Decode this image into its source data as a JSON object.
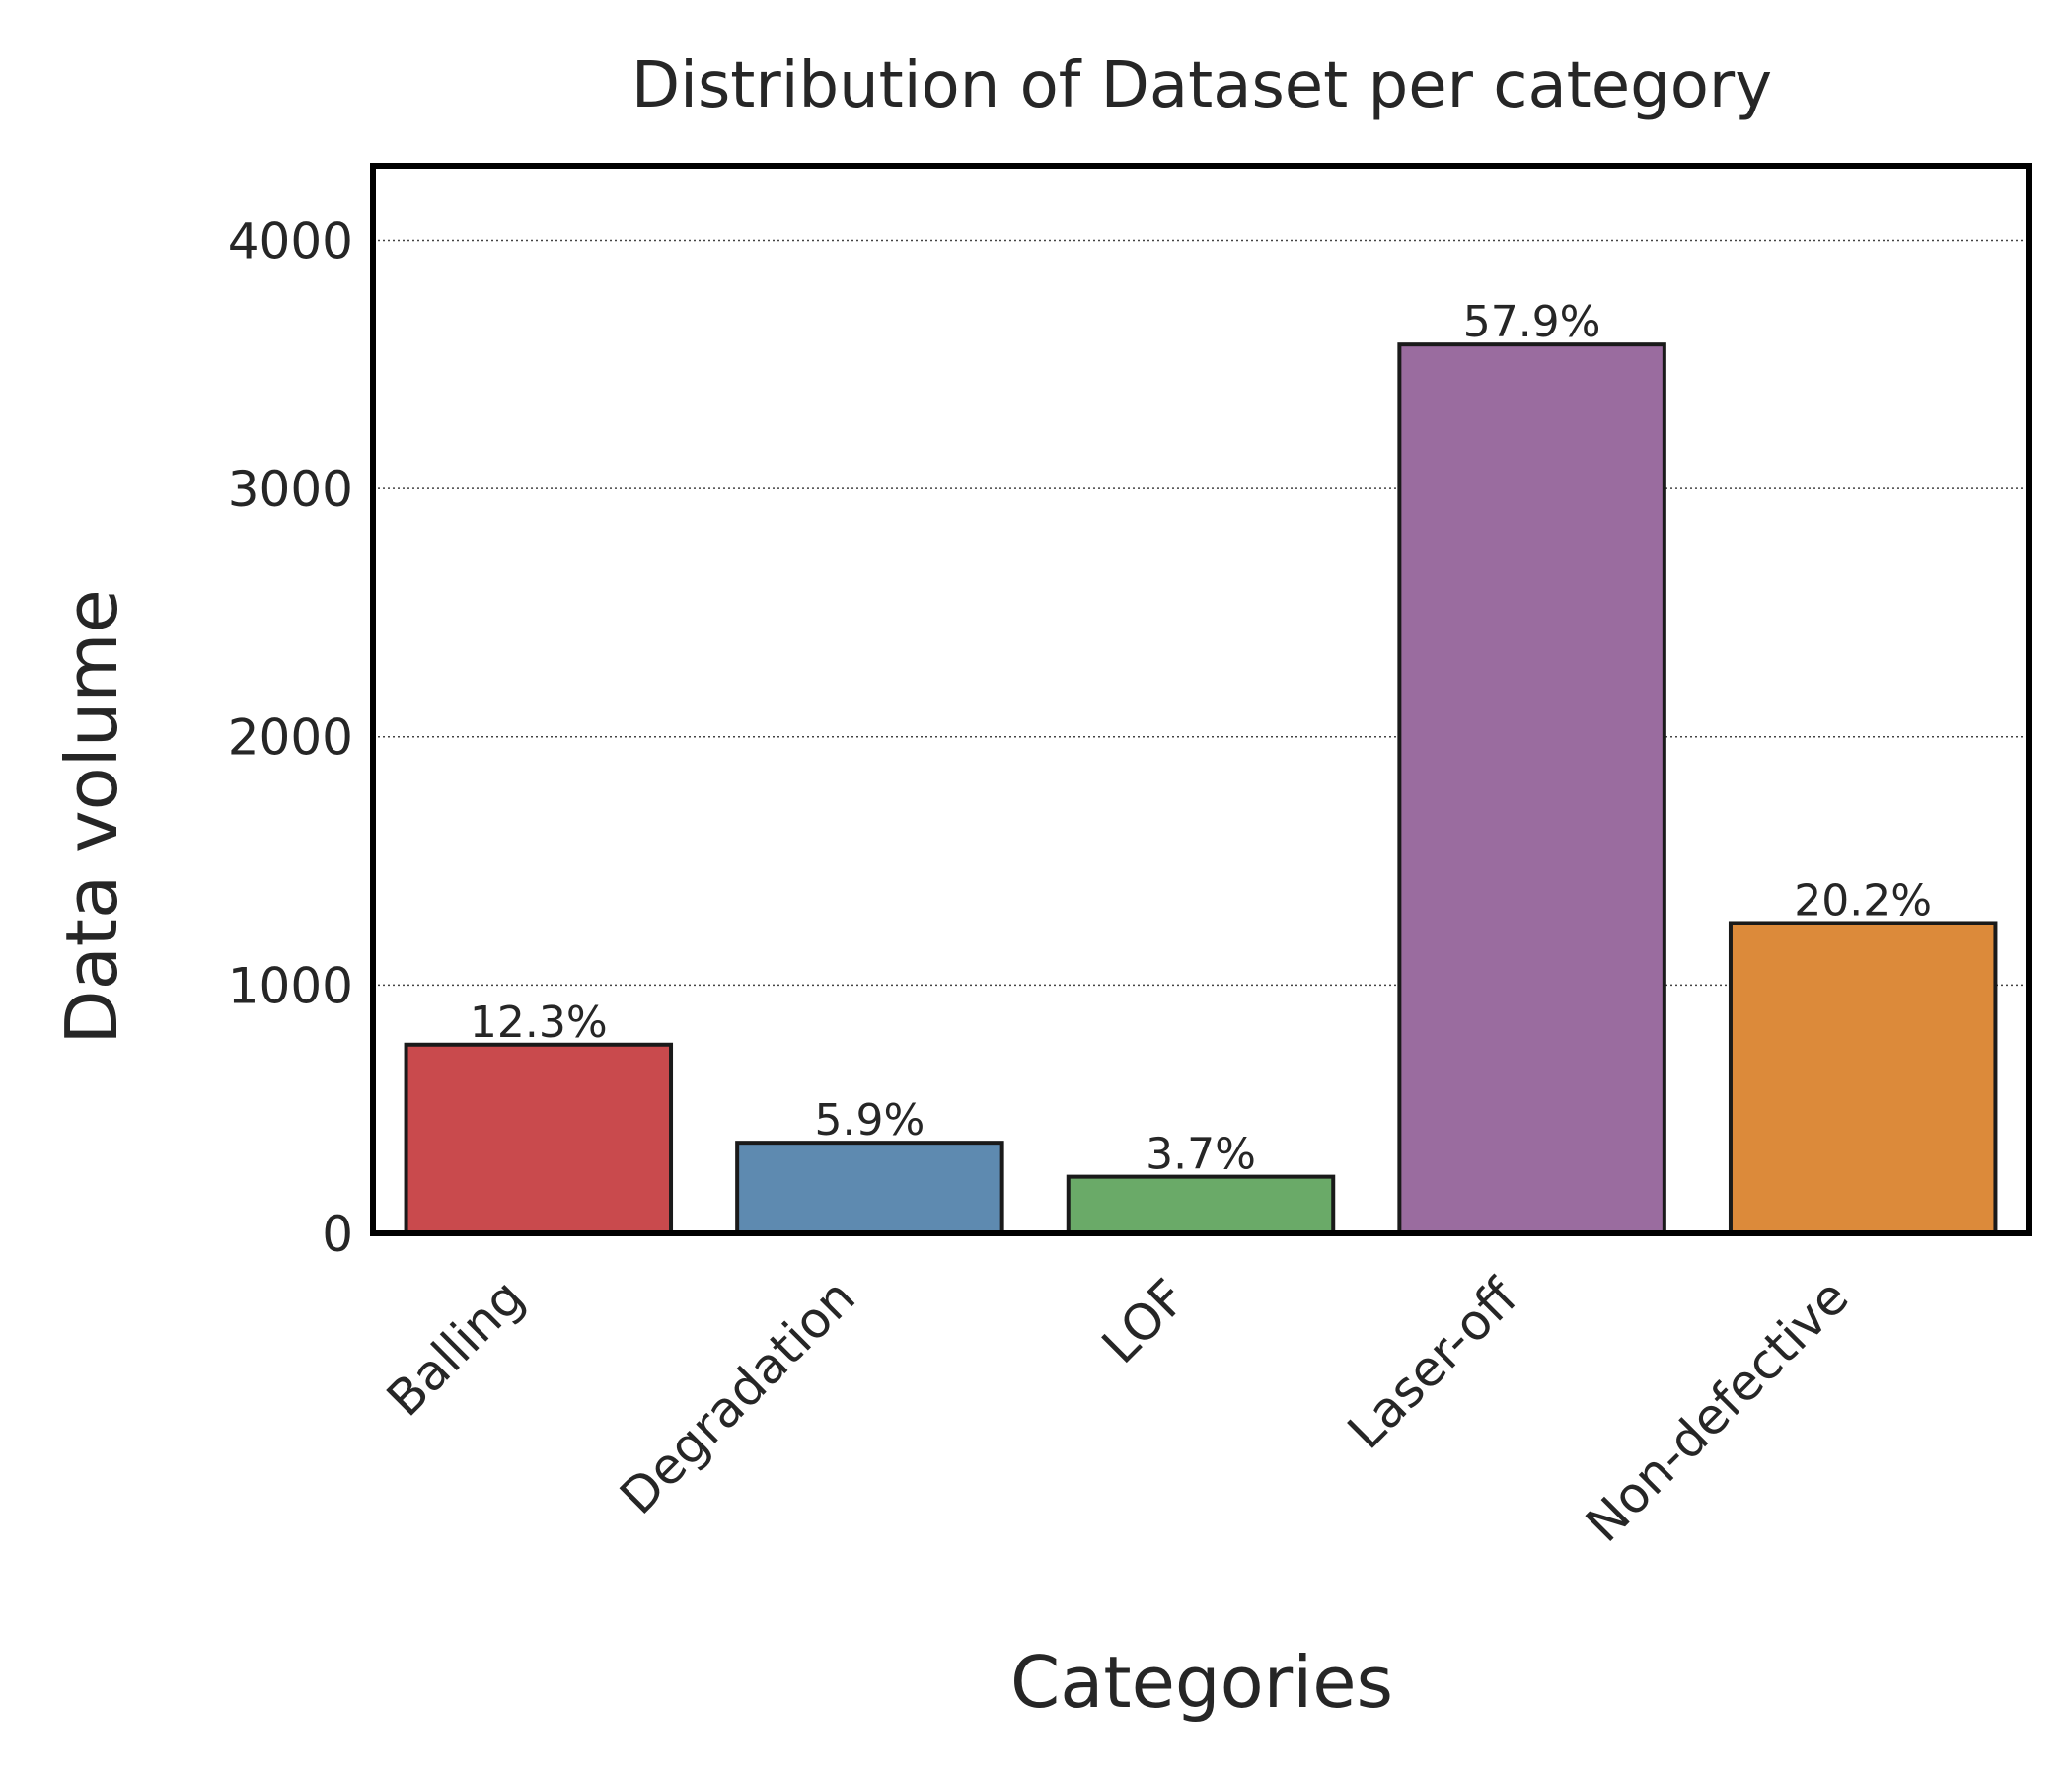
{
  "chart_data": {
    "type": "bar",
    "title": "Distribution of Dataset per category",
    "xlabel": "Categories",
    "ylabel": "Data volume",
    "categories": [
      "Balling",
      "Degradation",
      "LOF",
      "Laser-off",
      "Non-defective"
    ],
    "values": [
      760,
      365,
      228,
      3580,
      1250
    ],
    "data_labels": [
      "12.3%",
      "5.9%",
      "3.7%",
      "57.9%",
      "20.2%"
    ],
    "colors": [
      "#c94a4d",
      "#5e8ab0",
      "#6aaa68",
      "#9a6c9f",
      "#dc8a3a"
    ],
    "ylim": [
      0,
      4300
    ],
    "yticks": [
      0,
      1000,
      2000,
      3000,
      4000
    ],
    "ytick_labels": [
      "0",
      "1000",
      "2000",
      "3000",
      "4000"
    ],
    "grid": "horizontal dotted",
    "legend": "none"
  }
}
